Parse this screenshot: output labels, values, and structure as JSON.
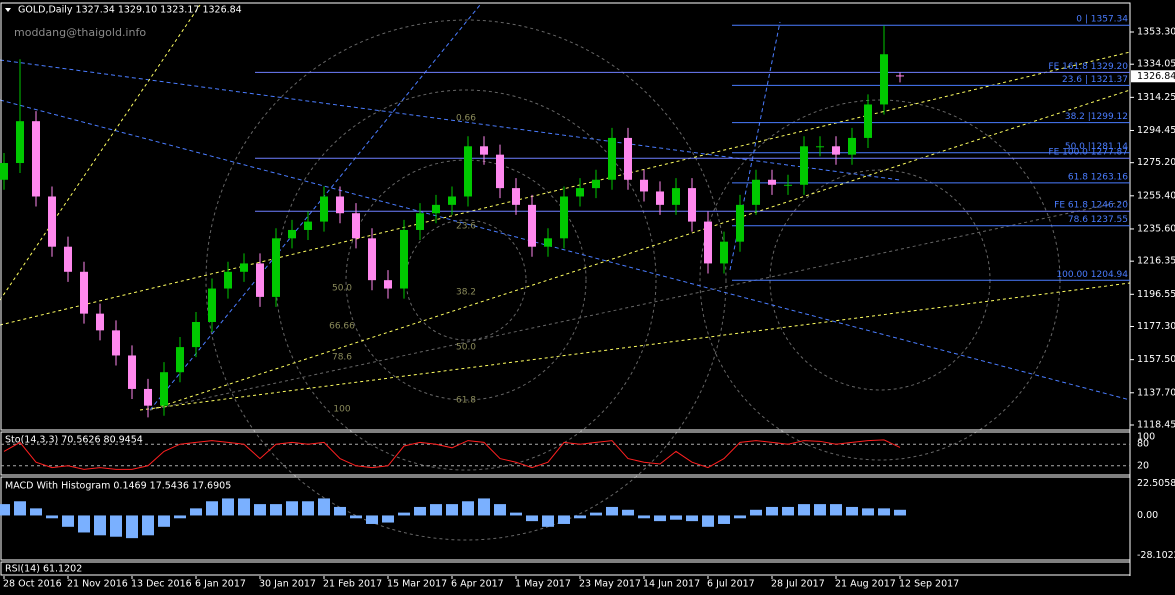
{
  "chart_data": {
    "type": "candlestick",
    "title": "GOLD,Daily  1327.34 1329.10 1323.17 1326.84",
    "watermark": "moddang@thaigold.info",
    "categories": [
      "28 Oct 2016",
      null,
      null,
      null,
      "21 Nov 2016",
      null,
      null,
      null,
      "13 Dec 2016",
      null,
      null,
      null,
      "6 Jan 2017",
      null,
      null,
      null,
      "30 Jan 2017",
      null,
      null,
      null,
      "21 Feb 2017",
      null,
      null,
      null,
      "15 Mar 2017",
      null,
      null,
      null,
      "6 Apr 2017",
      null,
      null,
      null,
      "1 May 2017",
      null,
      null,
      null,
      "23 May 2017",
      null,
      null,
      null,
      "14 Jun 2017",
      null,
      null,
      null,
      "6 Jul 2017",
      null,
      null,
      null,
      "28 Jul 2017",
      null,
      null,
      null,
      "21 Aug 2017",
      null,
      null,
      null,
      "12 Sep 2017"
    ],
    "open": [
      1265,
      1275,
      1300,
      1255,
      1225,
      1210,
      1185,
      1175,
      1160,
      1140,
      1130,
      1150,
      1165,
      1180,
      1200,
      1210,
      1215,
      1195,
      1230,
      1235,
      1240,
      1255,
      1245,
      1230,
      1205,
      1200,
      1235,
      1245,
      1250,
      1255,
      1285,
      1280,
      1260,
      1250,
      1225,
      1230,
      1255,
      1260,
      1265,
      1290,
      1265,
      1258,
      1250,
      1260,
      1240,
      1215,
      1228,
      1250,
      1265,
      1262,
      1262,
      1285,
      1285,
      1280,
      1290,
      1310,
      1327.34
    ],
    "high": [
      1281,
      1337,
      1306,
      1261,
      1231,
      1216,
      1191,
      1181,
      1166,
      1146,
      1156,
      1171,
      1186,
      1206,
      1216,
      1221,
      1221,
      1236,
      1241,
      1246,
      1261,
      1261,
      1251,
      1236,
      1211,
      1241,
      1251,
      1256,
      1261,
      1291,
      1291,
      1286,
      1266,
      1256,
      1236,
      1261,
      1266,
      1271,
      1296,
      1296,
      1271,
      1264,
      1266,
      1266,
      1246,
      1234,
      1256,
      1271,
      1271,
      1268,
      1291,
      1291,
      1291,
      1296,
      1316,
      1357,
      1329.1
    ],
    "low": [
      1259,
      1269,
      1249,
      1219,
      1204,
      1179,
      1169,
      1154,
      1134,
      1123,
      1124,
      1144,
      1159,
      1174,
      1194,
      1204,
      1189,
      1189,
      1224,
      1229,
      1234,
      1239,
      1224,
      1199,
      1194,
      1194,
      1229,
      1239,
      1244,
      1249,
      1274,
      1254,
      1244,
      1219,
      1219,
      1224,
      1249,
      1254,
      1259,
      1259,
      1252,
      1244,
      1244,
      1234,
      1209,
      1209,
      1222,
      1244,
      1256,
      1256,
      1256,
      1279,
      1274,
      1274,
      1284,
      1304,
      1323.17
    ],
    "close": [
      1275,
      1300,
      1255,
      1225,
      1210,
      1185,
      1175,
      1160,
      1140,
      1130,
      1150,
      1165,
      1180,
      1200,
      1210,
      1215,
      1195,
      1230,
      1235,
      1240,
      1255,
      1245,
      1230,
      1205,
      1200,
      1235,
      1245,
      1250,
      1255,
      1285,
      1280,
      1260,
      1250,
      1225,
      1230,
      1255,
      1260,
      1265,
      1290,
      1265,
      1258,
      1250,
      1260,
      1240,
      1215,
      1228,
      1250,
      1265,
      1262,
      1262,
      1285,
      1285,
      1280,
      1290,
      1310,
      1340,
      1326.84
    ],
    "up_color": "#00c800",
    "down_color": "#ff88ee",
    "ylim": [
      1115.46,
      1369.43
    ],
    "yticks": [
      {
        "value": 1353.3,
        "label": "1353.30"
      },
      {
        "value": 1334.05,
        "label": "1334.05"
      },
      {
        "value": 1314.25,
        "label": "1314.25"
      },
      {
        "value": 1294.45,
        "label": "1294.45"
      },
      {
        "value": 1275.2,
        "label": "1275.20"
      },
      {
        "value": 1255.4,
        "label": "1255.40"
      },
      {
        "value": 1235.6,
        "label": "1235.60"
      },
      {
        "value": 1216.35,
        "label": "1216.35"
      },
      {
        "value": 1196.55,
        "label": "1196.55"
      },
      {
        "value": 1177.3,
        "label": "1177.30"
      },
      {
        "value": 1157.5,
        "label": "1157.50"
      },
      {
        "value": 1137.7,
        "label": "1137.70"
      },
      {
        "value": 1118.45,
        "label": "1118.45"
      }
    ],
    "last_price": {
      "value": 1326.84,
      "label": "1326.84"
    },
    "fib_retracement": [
      {
        "value": 1357.34,
        "label": "0 | 1357.34"
      },
      {
        "value": 1321.37,
        "label": "23.6 | 1321.37"
      },
      {
        "value": 1299.12,
        "label": "38.2 |1299.12"
      },
      {
        "value": 1281.14,
        "label": "50.0 |1281.14"
      },
      {
        "value": 1263.16,
        "label": "61.8 1263.16"
      },
      {
        "value": 1237.55,
        "label": "78.6 1237.55"
      },
      {
        "value": 1204.94,
        "label": "100.00 1204.94"
      }
    ],
    "fib_expansion": [
      {
        "value": 1329.2,
        "label": "FE 161.8 1329.20"
      },
      {
        "value": 1277.87,
        "label": "FE 100.0 1277.87"
      },
      {
        "value": 1246.2,
        "label": "FE 61.8 1246.20"
      }
    ],
    "fan_labels": [
      "0.66",
      "23.6",
      "50.0",
      "38.2",
      "66.66",
      "50.0",
      "78.6",
      "100",
      "61.8"
    ],
    "stochastic": {
      "title": "Sto(14,3,3) 70.5626 80.9454",
      "color": "#ff2020",
      "ylim": [
        0,
        100
      ],
      "yticks": [
        100,
        80,
        20
      ],
      "values": [
        60,
        85,
        30,
        15,
        20,
        10,
        15,
        10,
        10,
        20,
        60,
        80,
        85,
        90,
        85,
        80,
        40,
        80,
        85,
        80,
        85,
        40,
        20,
        15,
        20,
        75,
        85,
        80,
        70,
        90,
        85,
        40,
        30,
        15,
        30,
        85,
        80,
        85,
        90,
        40,
        30,
        25,
        60,
        30,
        15,
        40,
        85,
        90,
        85,
        80,
        90,
        88,
        80,
        85,
        90,
        92,
        71
      ]
    },
    "macd": {
      "title": "MACD With Histogram 0.1469 17.5436 17.6905",
      "color": "#7ab0ff",
      "ylim": [
        -30,
        25
      ],
      "yticks": [
        22.5058,
        {
          "value": 0,
          "label": "0.00"
        },
        -28.1022
      ],
      "values": [
        8,
        10,
        5,
        -2,
        -8,
        -12,
        -14,
        -15,
        -16,
        -14,
        -8,
        -2,
        5,
        10,
        12,
        12,
        8,
        8,
        10,
        10,
        12,
        6,
        -2,
        -6,
        -5,
        2,
        6,
        8,
        8,
        10,
        12,
        8,
        2,
        -4,
        -8,
        -6,
        -2,
        2,
        6,
        4,
        -2,
        -4,
        -3,
        -4,
        -8,
        -6,
        -2,
        4,
        6,
        6,
        8,
        8,
        8,
        6,
        5,
        5,
        4
      ]
    },
    "rsi": {
      "title": "RSI(14) 61.1202"
    }
  }
}
